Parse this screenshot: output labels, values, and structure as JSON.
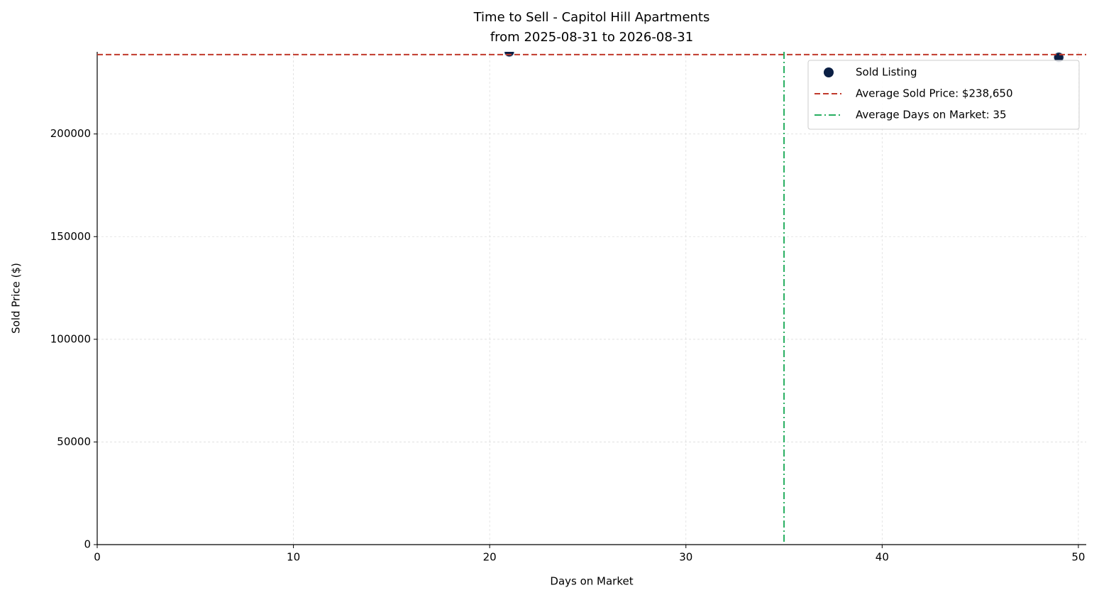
{
  "chart_data": {
    "type": "scatter",
    "title": "Time to Sell - Capitol Hill Apartments",
    "subtitle": "from 2025-08-31 to 2026-08-31",
    "x_label": "Days on Market",
    "y_label": "Sold Price ($)",
    "x": [
      21,
      49
    ],
    "series": [
      {
        "name": "Sold Listing",
        "color": "#0b1f44",
        "values": [
          240000,
          237300
        ]
      }
    ],
    "reference_lines": [
      {
        "axis": "y",
        "value": 238650,
        "label": "Average Sold Price: $238,650",
        "color": "#c0392b",
        "style": "dashed"
      },
      {
        "axis": "x",
        "value": 35,
        "label": "Average Days on Market: 35",
        "color": "#27ae60",
        "style": "dashdot"
      }
    ],
    "xlim": [
      0,
      50.4
    ],
    "xticks": [
      0,
      10,
      20,
      30,
      40,
      50
    ],
    "ylim": [
      0,
      240000
    ],
    "yticks": [
      0,
      50000,
      100000,
      150000,
      200000
    ],
    "grid": true,
    "legend": "upper right"
  }
}
